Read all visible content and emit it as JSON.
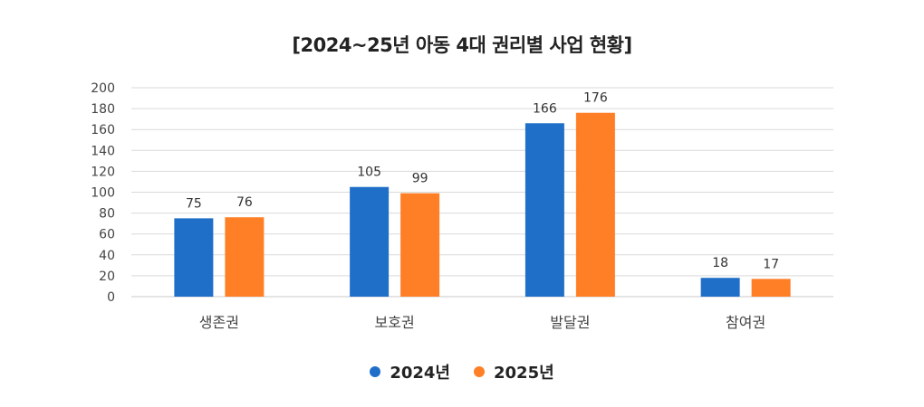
{
  "chart_data": {
    "type": "bar",
    "title": "[2024~25년 아동 4대 권리별 사업 현황]",
    "categories": [
      "생존권",
      "보호권",
      "발달권",
      "참여권"
    ],
    "series": [
      {
        "name": "2024년",
        "values": [
          75,
          105,
          166,
          18
        ],
        "color": "#1f6fc8"
      },
      {
        "name": "2025년",
        "values": [
          76,
          99,
          176,
          17
        ],
        "color": "#ff7f27"
      }
    ],
    "xlabel": "",
    "ylabel": "",
    "ylim": [
      0,
      200
    ],
    "yticks": [
      0,
      20,
      40,
      60,
      80,
      100,
      120,
      140,
      160,
      180,
      200
    ],
    "grid": true,
    "legend": "bottom"
  }
}
